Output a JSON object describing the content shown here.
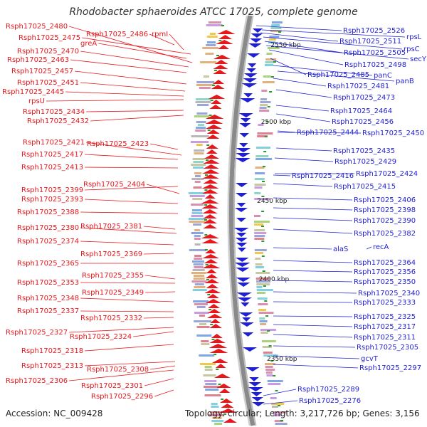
{
  "title": "Rhodobacter sphaeroides ATCC 17025, complete genome",
  "accession": "Accession: NC_009428",
  "summary": "Topology: circular; Length: 3,217,726 bp; Genes: 3,156",
  "colors": {
    "forward": "#e8171c",
    "reverse": "#1f1fd6",
    "backbone": "#8a8a8a",
    "tick": "#2a9a2a"
  },
  "scale_labels": [
    "2550 kbp",
    "2500 kbp",
    "2450 kbp",
    "2400 kbp",
    "2350 kbp"
  ],
  "left_labels": [
    "Rsph17025_2480",
    "Rsph17025_2486",
    "rpmI",
    "Rsph17025_2475",
    "greA",
    "Rsph17025_2470",
    "Rsph17025_2463",
    "Rsph17025_2457",
    "Rsph17025_2451",
    "Rsph17025_2445",
    "rpsU",
    "Rsph17025_2434",
    "Rsph17025_2432",
    "Rsph17025_2421",
    "Rsph17025_2423",
    "Rsph17025_2417",
    "Rsph17025_2413",
    "Rsph17025_2404",
    "Rsph17025_2399",
    "Rsph17025_2393",
    "Rsph17025_2388",
    "Rsph17025_2380",
    "Rsph17025_2381",
    "Rsph17025_2374",
    "Rsph17025_2369",
    "Rsph17025_2365",
    "Rsph17025_2355",
    "Rsph17025_2353",
    "Rsph17025_2349",
    "Rsph17025_2348",
    "Rsph17025_2337",
    "Rsph17025_2332",
    "Rsph17025_2327",
    "Rsph17025_2324",
    "Rsph17025_2318",
    "Rsph17025_2313",
    "Rsph17025_2308",
    "Rsph17025_2306",
    "Rsph17025_2301",
    "Rsph17025_2296"
  ],
  "right_labels": [
    "Rsph17025_2526",
    "rpsL",
    "Rsph17025_2511",
    "rpsC",
    "Rsph17025_2505",
    "secY",
    "Rsph17025_2498",
    "Rsph17025_2485",
    "panC",
    "panB",
    "Rsph17025_2481",
    "Rsph17025_2473",
    "Rsph17025_2464",
    "Rsph17025_2456",
    "Rsph17025_2444",
    "Rsph17025_2450",
    "Rsph17025_2435",
    "Rsph17025_2429",
    "Rsph17025_2416",
    "Rsph17025_2424",
    "Rsph17025_2415",
    "Rsph17025_2406",
    "Rsph17025_2398",
    "Rsph17025_2390",
    "Rsph17025_2382",
    "recA",
    "alaS",
    "Rsph17025_2364",
    "Rsph17025_2356",
    "Rsph17025_2350",
    "Rsph17025_2340",
    "Rsph17025_2333",
    "Rsph17025_2325",
    "Rsph17025_2317",
    "Rsph17025_2311",
    "Rsph17025_2305",
    "gcvT",
    "Rsph17025_2297",
    "Rsph17025_2289",
    "Rsph17025_2276"
  ]
}
